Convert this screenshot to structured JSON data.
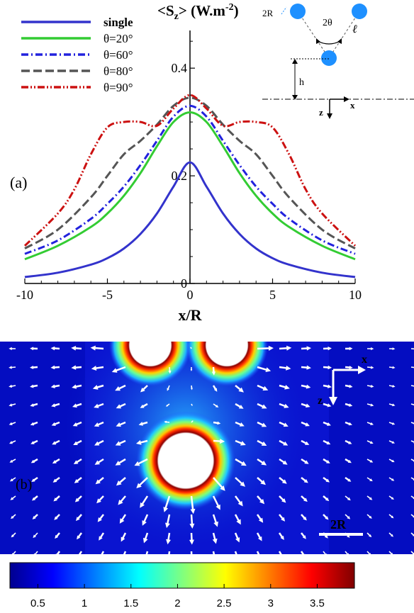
{
  "chart_data": [
    {
      "panel_label": "(a)",
      "type": "line",
      "ylabel_main": "<S",
      "ylabel_sub": "z",
      "ylabel_units": "> (W.m",
      "ylabel_sup": "-2",
      "ylabel_close": ")",
      "xlabel": "x/R",
      "xlim": [
        -10,
        10
      ],
      "ylim": [
        0,
        0.47
      ],
      "xticks": [
        -10,
        -5,
        0,
        5,
        10
      ],
      "xtick_labels": [
        "-10",
        "-5",
        "0",
        "5",
        "10"
      ],
      "yticks": [
        0,
        0.2,
        0.4
      ],
      "ytick_labels": [
        "0",
        "0.2",
        "0.4"
      ],
      "legend_position": "top-left",
      "series": [
        {
          "name": "single",
          "color": "#3333cc",
          "dash": "solid",
          "x": [
            -10,
            -8,
            -6,
            -5,
            -4,
            -3,
            -2,
            -1,
            0,
            1,
            2,
            3,
            4,
            5,
            6,
            8,
            10
          ],
          "values": [
            0.012,
            0.02,
            0.035,
            0.047,
            0.065,
            0.092,
            0.13,
            0.18,
            0.225,
            0.18,
            0.13,
            0.092,
            0.065,
            0.047,
            0.035,
            0.02,
            0.012
          ]
        },
        {
          "name": "θ=20°",
          "color": "#33cc33",
          "dash": "solid",
          "x": [
            -10,
            -8,
            -6,
            -5,
            -4,
            -3,
            -2,
            -1,
            0,
            1,
            2,
            3,
            4,
            5,
            6,
            8,
            10
          ],
          "values": [
            0.045,
            0.07,
            0.105,
            0.13,
            0.163,
            0.205,
            0.255,
            0.3,
            0.318,
            0.3,
            0.255,
            0.205,
            0.163,
            0.13,
            0.105,
            0.07,
            0.045
          ]
        },
        {
          "name": "θ=60°",
          "color": "#2222dd",
          "dash": "dashdot",
          "x": [
            -10,
            -8,
            -6,
            -5,
            -4,
            -3,
            -2,
            -1,
            0,
            1,
            2,
            3,
            4,
            5,
            6,
            8,
            10
          ],
          "values": [
            0.055,
            0.08,
            0.12,
            0.148,
            0.18,
            0.22,
            0.265,
            0.31,
            0.33,
            0.31,
            0.265,
            0.22,
            0.18,
            0.148,
            0.12,
            0.08,
            0.055
          ]
        },
        {
          "name": "θ=80°",
          "color": "#555555",
          "dash": "dash",
          "x": [
            -10,
            -8,
            -6,
            -5,
            -4,
            -3,
            -2,
            -1,
            0,
            1,
            2,
            3,
            4,
            5,
            6,
            8,
            10
          ],
          "values": [
            0.065,
            0.1,
            0.16,
            0.2,
            0.24,
            0.265,
            0.295,
            0.33,
            0.345,
            0.33,
            0.295,
            0.265,
            0.24,
            0.2,
            0.16,
            0.1,
            0.065
          ]
        },
        {
          "name": "θ=90°",
          "color": "#cc1111",
          "dash": "dashdotdot",
          "x": [
            -10,
            -8,
            -7,
            -6,
            -5,
            -4,
            -3,
            -2,
            -1,
            0,
            1,
            2,
            3,
            4,
            5,
            6,
            7,
            8,
            10
          ],
          "values": [
            0.07,
            0.13,
            0.175,
            0.24,
            0.29,
            0.3,
            0.3,
            0.293,
            0.325,
            0.35,
            0.325,
            0.293,
            0.3,
            0.3,
            0.29,
            0.24,
            0.175,
            0.13,
            0.07
          ]
        }
      ],
      "inset": {
        "label_2r": "2R",
        "label_2theta": "2θ",
        "label_ell": "ℓ",
        "label_h": "h",
        "label_x": "x",
        "label_z": "z",
        "sphere_color": "#1e90ff"
      }
    },
    {
      "panel_label": "(b)",
      "type": "heatmap",
      "scale_label": "2R",
      "axis_x": "x",
      "axis_z": "z",
      "colorbar": {
        "min": 0.2,
        "max": 3.9,
        "ticks": [
          0.5,
          1,
          1.5,
          2,
          2.5,
          3,
          3.5
        ],
        "tick_labels": [
          "0.5",
          "1",
          "1.5",
          "2",
          "2.5",
          "3",
          "3.5"
        ],
        "colormap": "jet"
      }
    }
  ]
}
